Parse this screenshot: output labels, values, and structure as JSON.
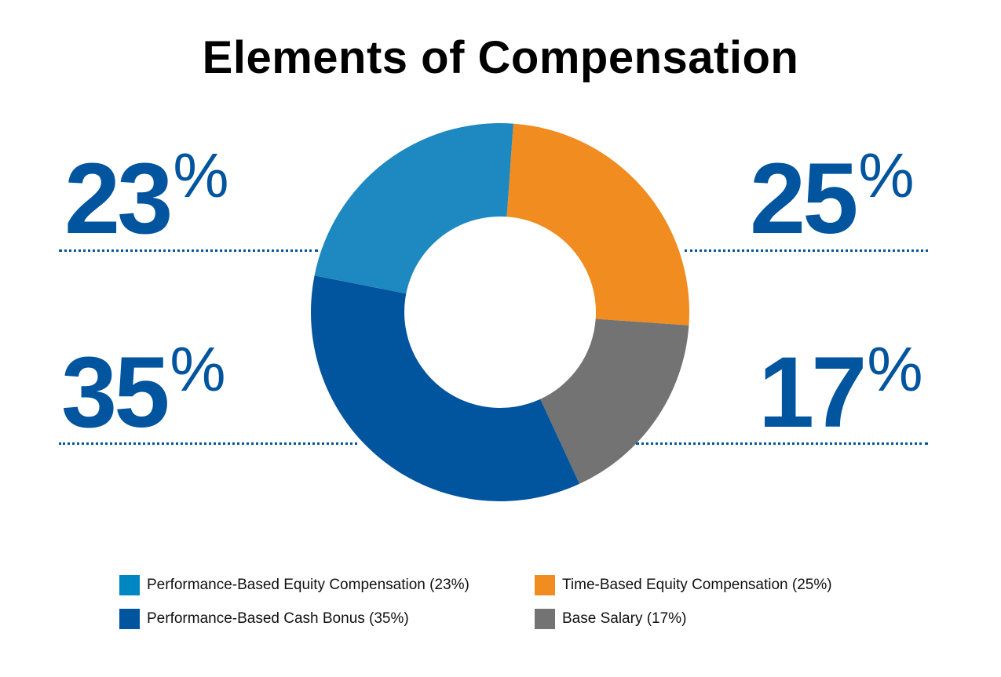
{
  "chart_data": {
    "type": "pie",
    "variant": "donut",
    "title": "Elements of Compensation",
    "slices": [
      {
        "label": "Time-Based Equity Compensation (25%)",
        "value": 25,
        "display": "25",
        "color": "#f08c20"
      },
      {
        "label": "Base Salary (17%)",
        "value": 17,
        "display": "17",
        "color": "#737373"
      },
      {
        "label": "Performance-Based Cash Bonus (35%)",
        "value": 35,
        "display": "35",
        "color": "#01549e"
      },
      {
        "label": "Performance-Based Equity Compensation (23%)",
        "value": 23,
        "display": "23",
        "color": "#1e88c0"
      }
    ],
    "percent_sign": "%",
    "legend_placement": "bottom"
  }
}
